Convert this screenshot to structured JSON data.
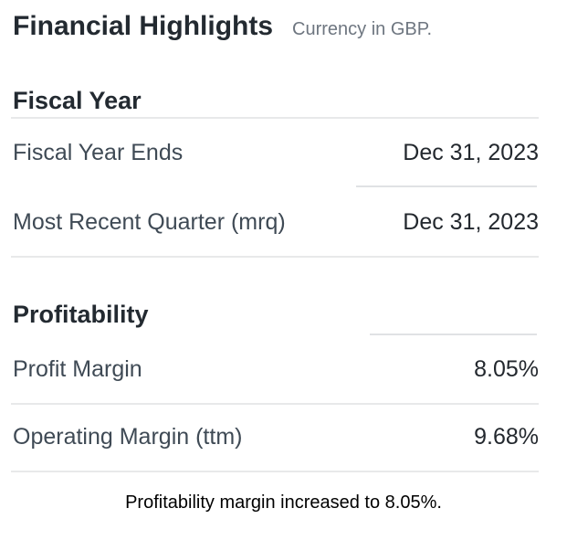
{
  "page": {
    "title": "Financial Highlights",
    "subtitle": "Currency in GBP.",
    "caption": "Profitability margin increased to 8.05%."
  },
  "sections": [
    {
      "heading": "Fiscal Year",
      "rows": [
        {
          "label": "Fiscal Year Ends",
          "value": "Dec 31, 2023"
        },
        {
          "label": "Most Recent Quarter (mrq)",
          "value": "Dec 31, 2023"
        }
      ]
    },
    {
      "heading": "Profitability",
      "rows": [
        {
          "label": "Profit Margin",
          "value": "8.05%"
        },
        {
          "label": "Operating Margin (ttm)",
          "value": "9.68%"
        }
      ]
    }
  ],
  "colors": {
    "heading": "#232a31",
    "label": "#3f4a55",
    "value": "#23282e",
    "subtitle": "#6e7680",
    "divider_full": "#e8e9ea",
    "divider_short": "#e0e2e4",
    "caption": "#000000",
    "background": "#ffffff"
  }
}
